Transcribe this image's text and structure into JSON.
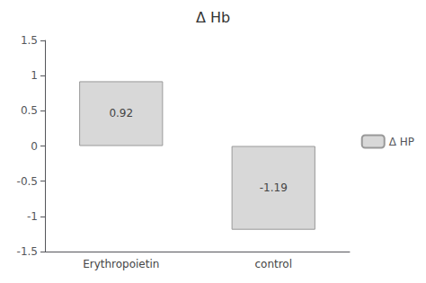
{
  "chart_data": {
    "type": "bar",
    "title": "Δ Hb",
    "categories": [
      "Erythropoietin",
      "control"
    ],
    "series": [
      {
        "name": "Δ HP",
        "color": "#d8d8d8",
        "values": [
          0.92,
          -1.19
        ]
      }
    ],
    "ylim": [
      -1.5,
      1.5
    ],
    "yticks": [
      -1.5,
      -1,
      -0.5,
      0,
      0.5,
      1,
      1.5
    ],
    "grid": false,
    "legend": "right",
    "data_labels": true
  }
}
